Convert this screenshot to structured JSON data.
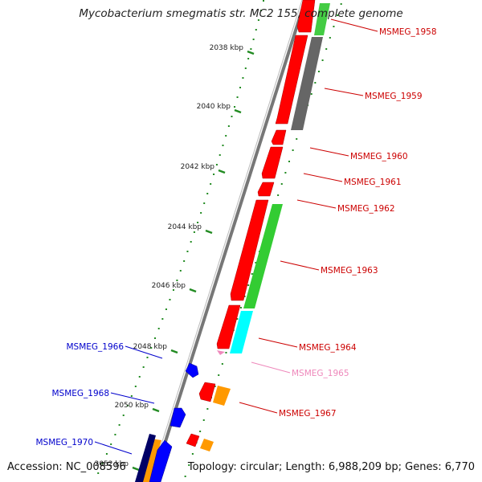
{
  "title": "Mycobacterium smegmatis str. MC2 155, complete genome",
  "footer": {
    "accession": "Accession: NC_008596",
    "summary": "Topology: circular; Length: 6,988,209 bp; Genes: 6,770"
  },
  "ticks": [
    {
      "label": "2038 kbp"
    },
    {
      "label": "2040 kbp"
    },
    {
      "label": "2042 kbp"
    },
    {
      "label": "2044 kbp"
    },
    {
      "label": "2046 kbp"
    },
    {
      "label": "2048 kbp"
    },
    {
      "label": "2050 kbp"
    },
    {
      "label": "2052 kbp"
    }
  ],
  "genes": [
    {
      "name": "MSMEG_1958",
      "color": "#cc0000"
    },
    {
      "name": "MSMEG_1959",
      "color": "#cc0000"
    },
    {
      "name": "MSMEG_1960",
      "color": "#cc0000"
    },
    {
      "name": "MSMEG_1961",
      "color": "#cc0000"
    },
    {
      "name": "MSMEG_1962",
      "color": "#cc0000"
    },
    {
      "name": "MSMEG_1963",
      "color": "#cc0000"
    },
    {
      "name": "MSMEG_1964",
      "color": "#cc0000"
    },
    {
      "name": "MSMEG_1965",
      "color": "#ee88bb"
    },
    {
      "name": "MSMEG_1967",
      "color": "#cc0000"
    },
    {
      "name": "MSMEG_1966",
      "color": "#0000cc"
    },
    {
      "name": "MSMEG_1968",
      "color": "#0000cc"
    },
    {
      "name": "MSMEG_1970",
      "color": "#0000cc"
    }
  ],
  "colors": {
    "forward_cds": "#ff0000",
    "reverse_cds": "#0000ff",
    "backbone": "#808080",
    "ticks": "#228b22",
    "gc_skew_green": "#33cc33",
    "gc_content_gray": "#666666",
    "cyan_feature": "#00ffff",
    "orange_feature": "#ff9900",
    "navy_feature": "#000066"
  }
}
